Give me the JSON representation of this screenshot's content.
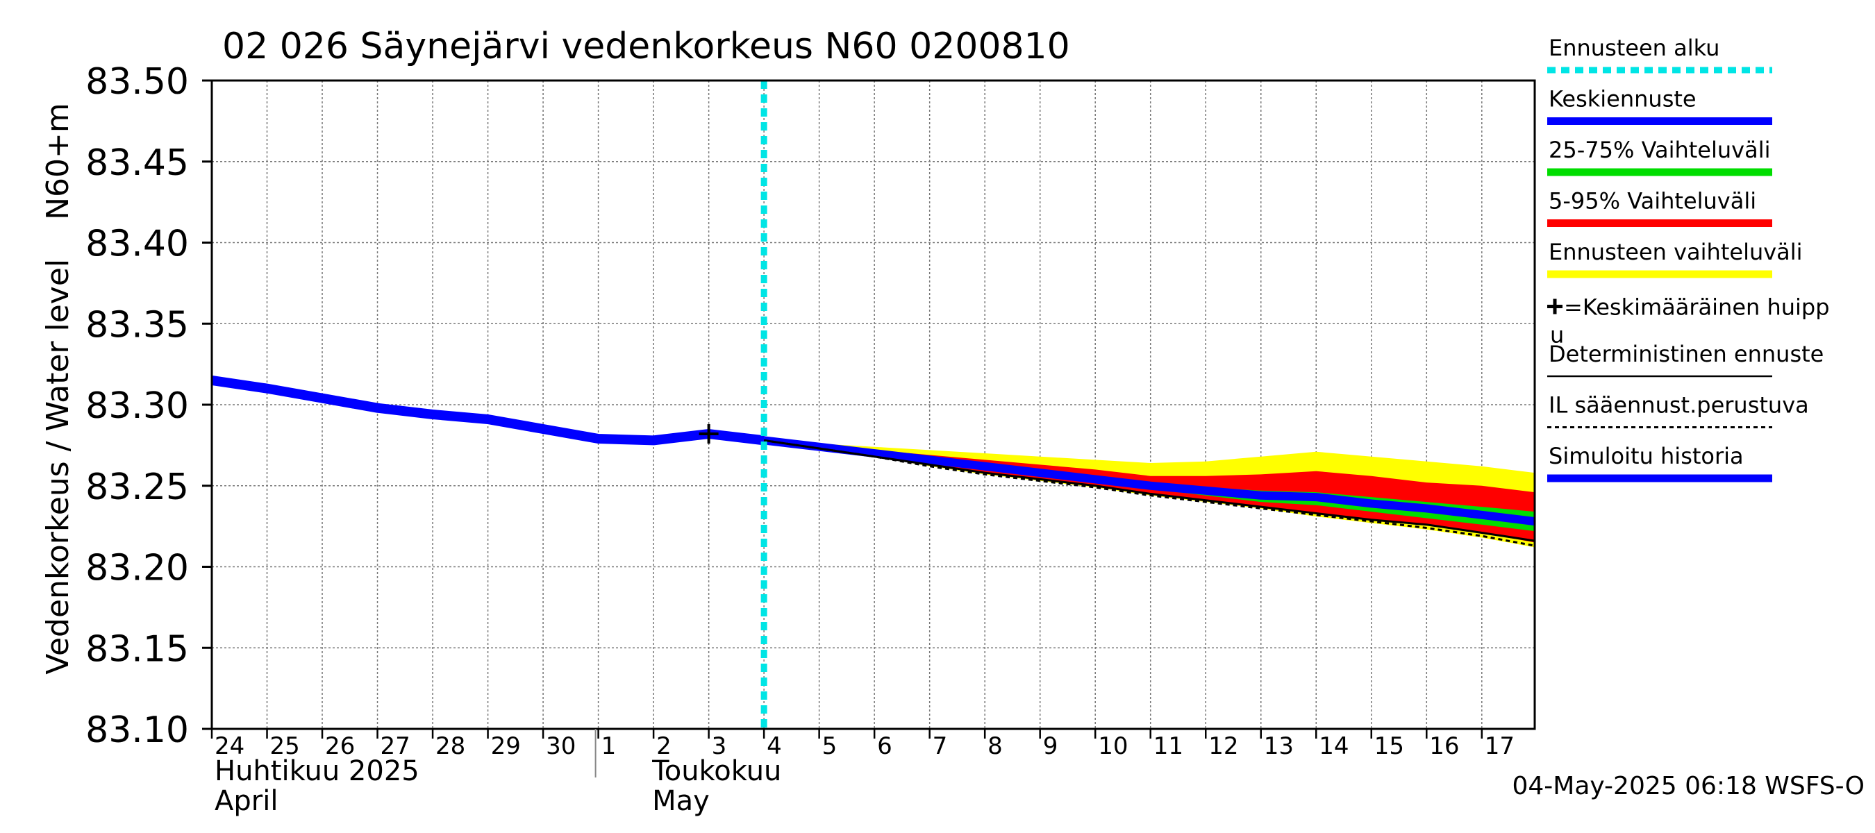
{
  "chart_data": {
    "type": "line",
    "title": "02 026 Säynejärvi vedenkorkeus N60 0200810",
    "ylabel": "Vedenkorkeus / Water level    N60+m",
    "ylim": [
      83.1,
      83.5
    ],
    "yticks": [
      "83.10",
      "83.15",
      "83.20",
      "83.25",
      "83.30",
      "83.35",
      "83.40",
      "83.45",
      "83.50"
    ],
    "xlim": [
      "2025-04-24",
      "2025-05-17T23:00"
    ],
    "xtick_labels": [
      "24",
      "25",
      "26",
      "27",
      "28",
      "29",
      "30",
      "1",
      "2",
      "3",
      "4",
      "5",
      "6",
      "7",
      "8",
      "9",
      "10",
      "11",
      "12",
      "13",
      "14",
      "15",
      "16",
      "17"
    ],
    "month_labels": [
      {
        "fi": "Huhtikuu  2025",
        "en": "April"
      },
      {
        "fi": "Toukokuu",
        "en": "May"
      }
    ],
    "grid": true,
    "legend_position": "right",
    "forecast_start": "2025-05-04",
    "series": [
      {
        "name": "Simuloitu historia",
        "color": "#0000ff",
        "x": [
          "2025-04-24",
          "2025-04-25",
          "2025-04-26",
          "2025-04-27",
          "2025-04-28",
          "2025-04-29",
          "2025-04-30",
          "2025-05-01",
          "2025-05-02",
          "2025-05-03",
          "2025-05-04"
        ],
        "y": [
          83.315,
          83.31,
          83.304,
          83.298,
          83.294,
          83.291,
          83.285,
          83.279,
          83.278,
          83.282,
          83.278
        ]
      },
      {
        "name": "Keskiennuste",
        "color": "#0000ff",
        "x": [
          "2025-05-04",
          "2025-05-05",
          "2025-05-06",
          "2025-05-07",
          "2025-05-08",
          "2025-05-09",
          "2025-05-10",
          "2025-05-11",
          "2025-05-12",
          "2025-05-13",
          "2025-05-14",
          "2025-05-15",
          "2025-05-16",
          "2025-05-17",
          "2025-05-17T23:00"
        ],
        "y": [
          83.278,
          83.274,
          83.27,
          83.266,
          83.262,
          83.258,
          83.254,
          83.25,
          83.247,
          83.244,
          83.243,
          83.239,
          83.236,
          83.232,
          83.228
        ]
      },
      {
        "name": "Deterministinen ennuste",
        "color": "#000000",
        "x": [
          "2025-05-04",
          "2025-05-05",
          "2025-05-06",
          "2025-05-07",
          "2025-05-08",
          "2025-05-09",
          "2025-05-10",
          "2025-05-11",
          "2025-05-12",
          "2025-05-13",
          "2025-05-14",
          "2025-05-15",
          "2025-05-16",
          "2025-05-17",
          "2025-05-17T23:00"
        ],
        "y": [
          83.278,
          83.273,
          83.268,
          83.263,
          83.258,
          83.254,
          83.25,
          83.245,
          83.241,
          83.237,
          83.233,
          83.229,
          83.226,
          83.221,
          83.216
        ]
      },
      {
        "name": "IL sääennust.perustuva",
        "color": "#000000",
        "x": [
          "2025-05-04",
          "2025-05-05",
          "2025-05-06",
          "2025-05-07",
          "2025-05-08",
          "2025-05-09",
          "2025-05-10",
          "2025-05-11",
          "2025-05-12",
          "2025-05-13",
          "2025-05-14",
          "2025-05-15",
          "2025-05-16",
          "2025-05-17",
          "2025-05-17T23:00"
        ],
        "y": [
          83.278,
          83.273,
          83.268,
          83.262,
          83.257,
          83.253,
          83.249,
          83.244,
          83.24,
          83.236,
          83.232,
          83.228,
          83.224,
          83.219,
          83.213
        ]
      }
    ],
    "bands": [
      {
        "name": "Ennusteen vaihteluväli",
        "color": "#ffff00",
        "x": [
          "2025-05-04",
          "2025-05-05",
          "2025-05-06",
          "2025-05-07",
          "2025-05-08",
          "2025-05-09",
          "2025-05-10",
          "2025-05-11",
          "2025-05-12",
          "2025-05-13",
          "2025-05-14",
          "2025-05-15",
          "2025-05-16",
          "2025-05-17",
          "2025-05-17T23:00"
        ],
        "upper": [
          83.278,
          83.276,
          83.274,
          83.272,
          83.27,
          83.268,
          83.266,
          83.264,
          83.265,
          83.268,
          83.271,
          83.268,
          83.265,
          83.262,
          83.258
        ],
        "lower": [
          83.278,
          83.273,
          83.268,
          83.262,
          83.257,
          83.253,
          83.249,
          83.244,
          83.24,
          83.236,
          83.231,
          83.227,
          83.223,
          83.218,
          83.212
        ]
      },
      {
        "name": "5-95% Vaihteluväli",
        "color": "#ff0000",
        "x": [
          "2025-05-04",
          "2025-05-05",
          "2025-05-06",
          "2025-05-07",
          "2025-05-08",
          "2025-05-09",
          "2025-05-10",
          "2025-05-11",
          "2025-05-12",
          "2025-05-13",
          "2025-05-14",
          "2025-05-15",
          "2025-05-16",
          "2025-05-17",
          "2025-05-17T23:00"
        ],
        "upper": [
          83.278,
          83.275,
          83.272,
          83.269,
          83.266,
          83.263,
          83.26,
          83.256,
          83.256,
          83.257,
          83.259,
          83.256,
          83.252,
          83.25,
          83.246
        ],
        "lower": [
          83.278,
          83.273,
          83.268,
          83.263,
          83.258,
          83.254,
          83.25,
          83.245,
          83.241,
          83.237,
          83.233,
          83.229,
          83.226,
          83.221,
          83.215
        ]
      },
      {
        "name": "25-75% Vaihteluväli",
        "color": "#00dd00",
        "x": [
          "2025-05-04",
          "2025-05-05",
          "2025-05-06",
          "2025-05-07",
          "2025-05-08",
          "2025-05-09",
          "2025-05-10",
          "2025-05-11",
          "2025-05-12",
          "2025-05-13",
          "2025-05-14",
          "2025-05-15",
          "2025-05-16",
          "2025-05-17",
          "2025-05-17T23:00"
        ],
        "upper": [
          83.278,
          83.275,
          83.271,
          83.267,
          83.263,
          83.26,
          83.256,
          83.252,
          83.249,
          83.247,
          83.246,
          83.243,
          83.24,
          83.237,
          83.234
        ],
        "lower": [
          83.278,
          83.274,
          83.269,
          83.265,
          83.26,
          83.256,
          83.252,
          83.248,
          83.244,
          83.24,
          83.238,
          83.234,
          83.23,
          83.226,
          83.222
        ]
      }
    ],
    "peak_marker": {
      "x": "2025-05-03",
      "y": 83.282
    },
    "legend": [
      {
        "label": "Ennusteen alku",
        "color": "#00e5e5",
        "style": "dotted-thick"
      },
      {
        "label": "Keskiennuste",
        "color": "#0000ff",
        "style": "thick"
      },
      {
        "label": "25-75% Vaihteluväli",
        "color": "#00dd00",
        "style": "thick"
      },
      {
        "label": "5-95% Vaihteluväli",
        "color": "#ff0000",
        "style": "thick"
      },
      {
        "label": "Ennusteen vaihteluväli",
        "color": "#ffff00",
        "style": "thick"
      },
      {
        "label": "=Keskimääräinen huipp",
        "label2": "u",
        "color": "#000000",
        "style": "plus"
      },
      {
        "label": "Deterministinen ennuste",
        "color": "#000000",
        "style": "thin"
      },
      {
        "label": "IL sääennust.perustuva",
        "color": "#000000",
        "style": "dashed"
      },
      {
        "label": "Simuloitu historia",
        "color": "#0000ff",
        "style": "thick"
      }
    ],
    "footer": "04-May-2025 06:18 WSFS-O"
  }
}
